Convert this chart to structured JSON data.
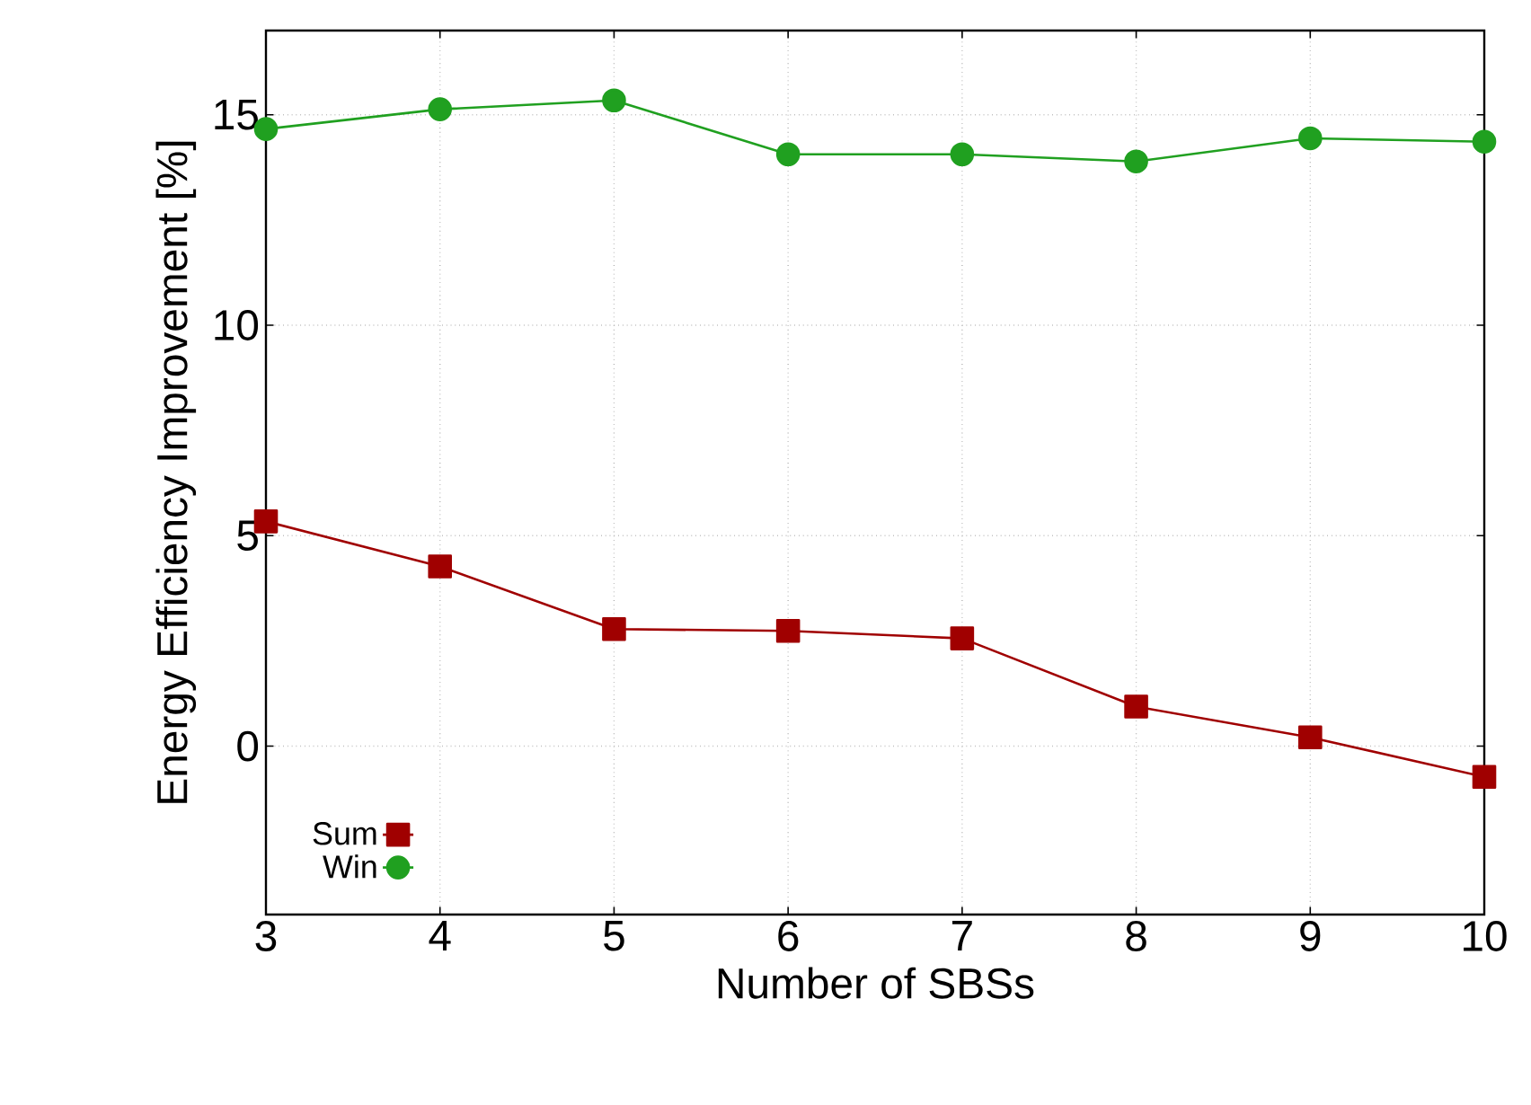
{
  "chart_data": {
    "type": "line",
    "xlabel": "Number of SBSs",
    "ylabel": "Energy Efficiency Improvement [%]",
    "x": [
      3,
      4,
      5,
      6,
      7,
      8,
      9,
      10
    ],
    "series": [
      {
        "name": "Sum",
        "color": "#a00000",
        "marker": "square",
        "values": [
          5.34,
          4.27,
          2.78,
          2.74,
          2.56,
          0.94,
          0.21,
          -0.73
        ]
      },
      {
        "name": "Win",
        "color": "#20a020",
        "marker": "circle",
        "values": [
          14.66,
          15.13,
          15.34,
          14.06,
          14.06,
          13.89,
          14.44,
          14.36
        ]
      }
    ],
    "xlim": [
      3,
      10
    ],
    "ylim": [
      -4,
      17
    ],
    "xticks": [
      3,
      4,
      5,
      6,
      7,
      8,
      9,
      10
    ],
    "yticks": [
      0,
      5,
      10,
      15
    ],
    "grid": true,
    "legend": "bottom left",
    "line_style": "solid"
  }
}
